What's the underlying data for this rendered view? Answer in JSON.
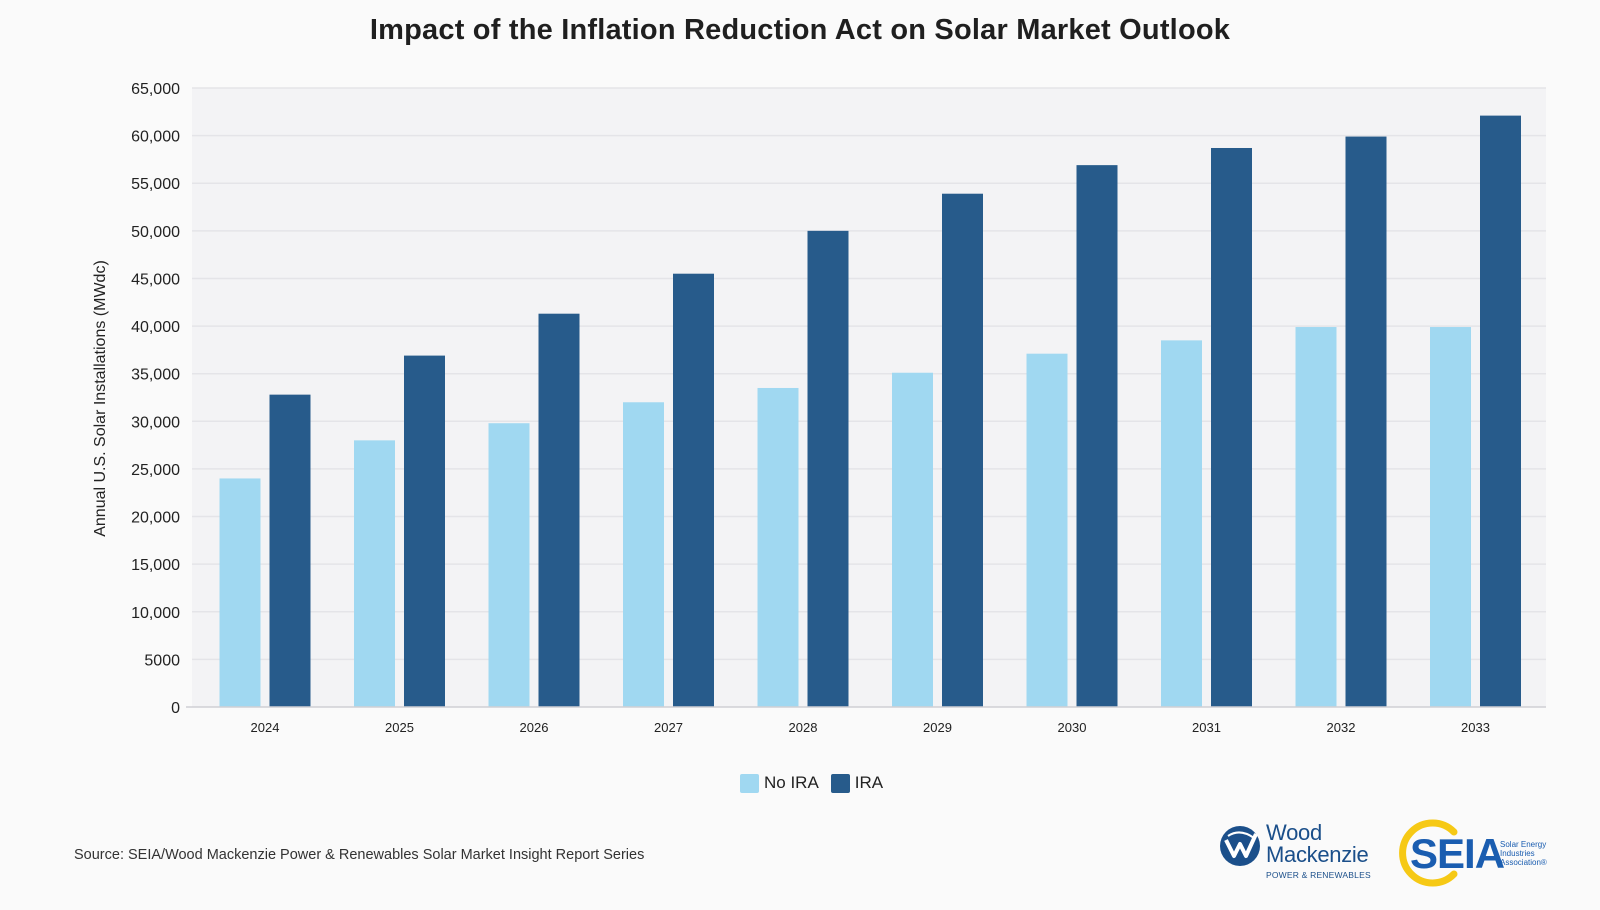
{
  "title": "Impact of the Inflation Reduction Act on Solar Market Outlook",
  "source": "Source: SEIA/Wood Mackenzie Power & Renewables Solar Market Insight Report Series",
  "colors": {
    "no_ira": "#a0d8f1",
    "ira": "#275b8b",
    "plot_bg": "#f3f3f5",
    "grid": "#e4e4e8"
  },
  "legend": [
    {
      "label": "No IRA",
      "color": "#a0d8f1"
    },
    {
      "label": "IRA",
      "color": "#275b8b"
    }
  ],
  "logos": {
    "woodmac": {
      "line1": "Wood",
      "line2": "Mackenzie",
      "sub": "POWER & RENEWABLES"
    },
    "seia": {
      "word": "SEIA",
      "sub": "Solar Energy Industries Association®"
    }
  },
  "chart_data": {
    "type": "bar",
    "title": "Impact of the Inflation Reduction Act on Solar Market Outlook",
    "xlabel": "",
    "ylabel": "Annual U.S. Solar Installations (MWdc)",
    "categories": [
      "2024",
      "2025",
      "2026",
      "2027",
      "2028",
      "2029",
      "2030",
      "2031",
      "2032",
      "2033"
    ],
    "series": [
      {
        "name": "No IRA",
        "color": "#a0d8f1",
        "values": [
          24000,
          28000,
          29800,
          32000,
          33500,
          35100,
          37100,
          38500,
          39900,
          39900
        ]
      },
      {
        "name": "IRA",
        "color": "#275b8b",
        "values": [
          32800,
          36900,
          41300,
          45500,
          50000,
          53900,
          56900,
          58700,
          59900,
          62100
        ]
      }
    ],
    "ylim": [
      0,
      65000
    ],
    "yticks": [
      0,
      5000,
      10000,
      15000,
      20000,
      25000,
      30000,
      35000,
      40000,
      45000,
      50000,
      55000,
      60000,
      65000
    ],
    "ytick_labels": [
      "0",
      "5000",
      "10,000",
      "15,000",
      "20,000",
      "25,000",
      "30,000",
      "35,000",
      "40,000",
      "45,000",
      "50,000",
      "55,000",
      "60,000",
      "65,000"
    ],
    "grid": true,
    "legend_position": "bottom-center"
  }
}
